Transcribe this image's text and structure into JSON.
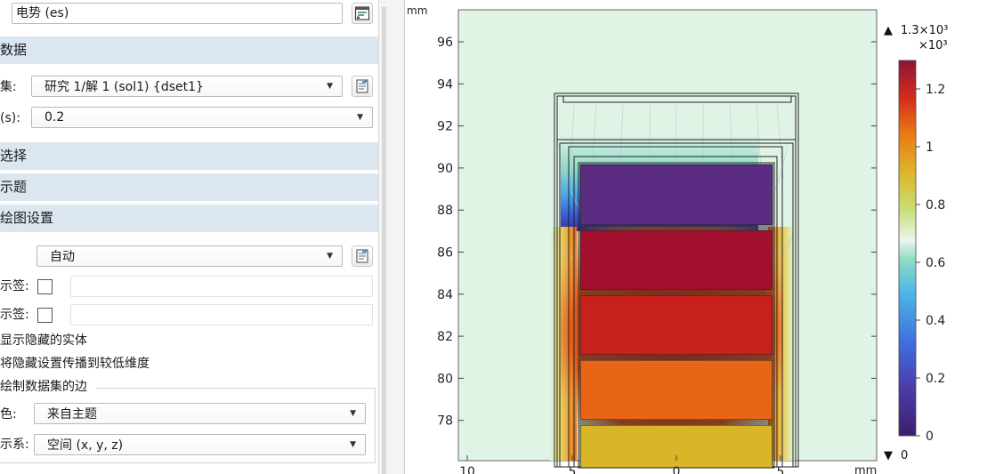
{
  "panel": {
    "expression_value": "电势 (es)",
    "data_section": {
      "title": "数据",
      "dataset_label": "集:",
      "dataset_value": "研究 1/解 1 (sol1) {dset1}",
      "time_label": "(s):",
      "time_value": "0.2"
    },
    "selection_section_title": "选择",
    "title_section_title": "示题",
    "plot_settings": {
      "title": "绘图设置",
      "view_value": "自动",
      "xlabel_label": "示签:",
      "ylabel_label": "示签:",
      "show_hidden_label": "显示隐藏的实体",
      "propagate_hidden_label": "将隐藏设置传播到较低维度",
      "plot_edges_label": "绘制数据集的边",
      "color_label": "色:",
      "color_value": "来自主题",
      "frame_label": "示系:",
      "frame_value": "空间  (x, y, z)"
    }
  },
  "plot": {
    "top_axis_unit": "mm",
    "y_ticks": [
      "96",
      "94",
      "92",
      "90",
      "88",
      "86",
      "84",
      "82",
      "80",
      "78"
    ],
    "x_ticks": [
      "10",
      "5",
      "0",
      "5"
    ],
    "x_unit_tail": "mm",
    "background_color": "#e0f4e6",
    "electrode_colors": [
      "#5a2d82",
      "#a3102e",
      "#c8201a",
      "#e86518",
      "#d8b627"
    ]
  },
  "colorbar": {
    "max_label": "1.3×10³",
    "multiplier": "×10³",
    "min_label": "0",
    "ticks": [
      "1.2",
      "1",
      "0.8",
      "0.6",
      "0.4",
      "0.2",
      "0"
    ],
    "up_icon": "▲",
    "down_icon": "▼"
  }
}
